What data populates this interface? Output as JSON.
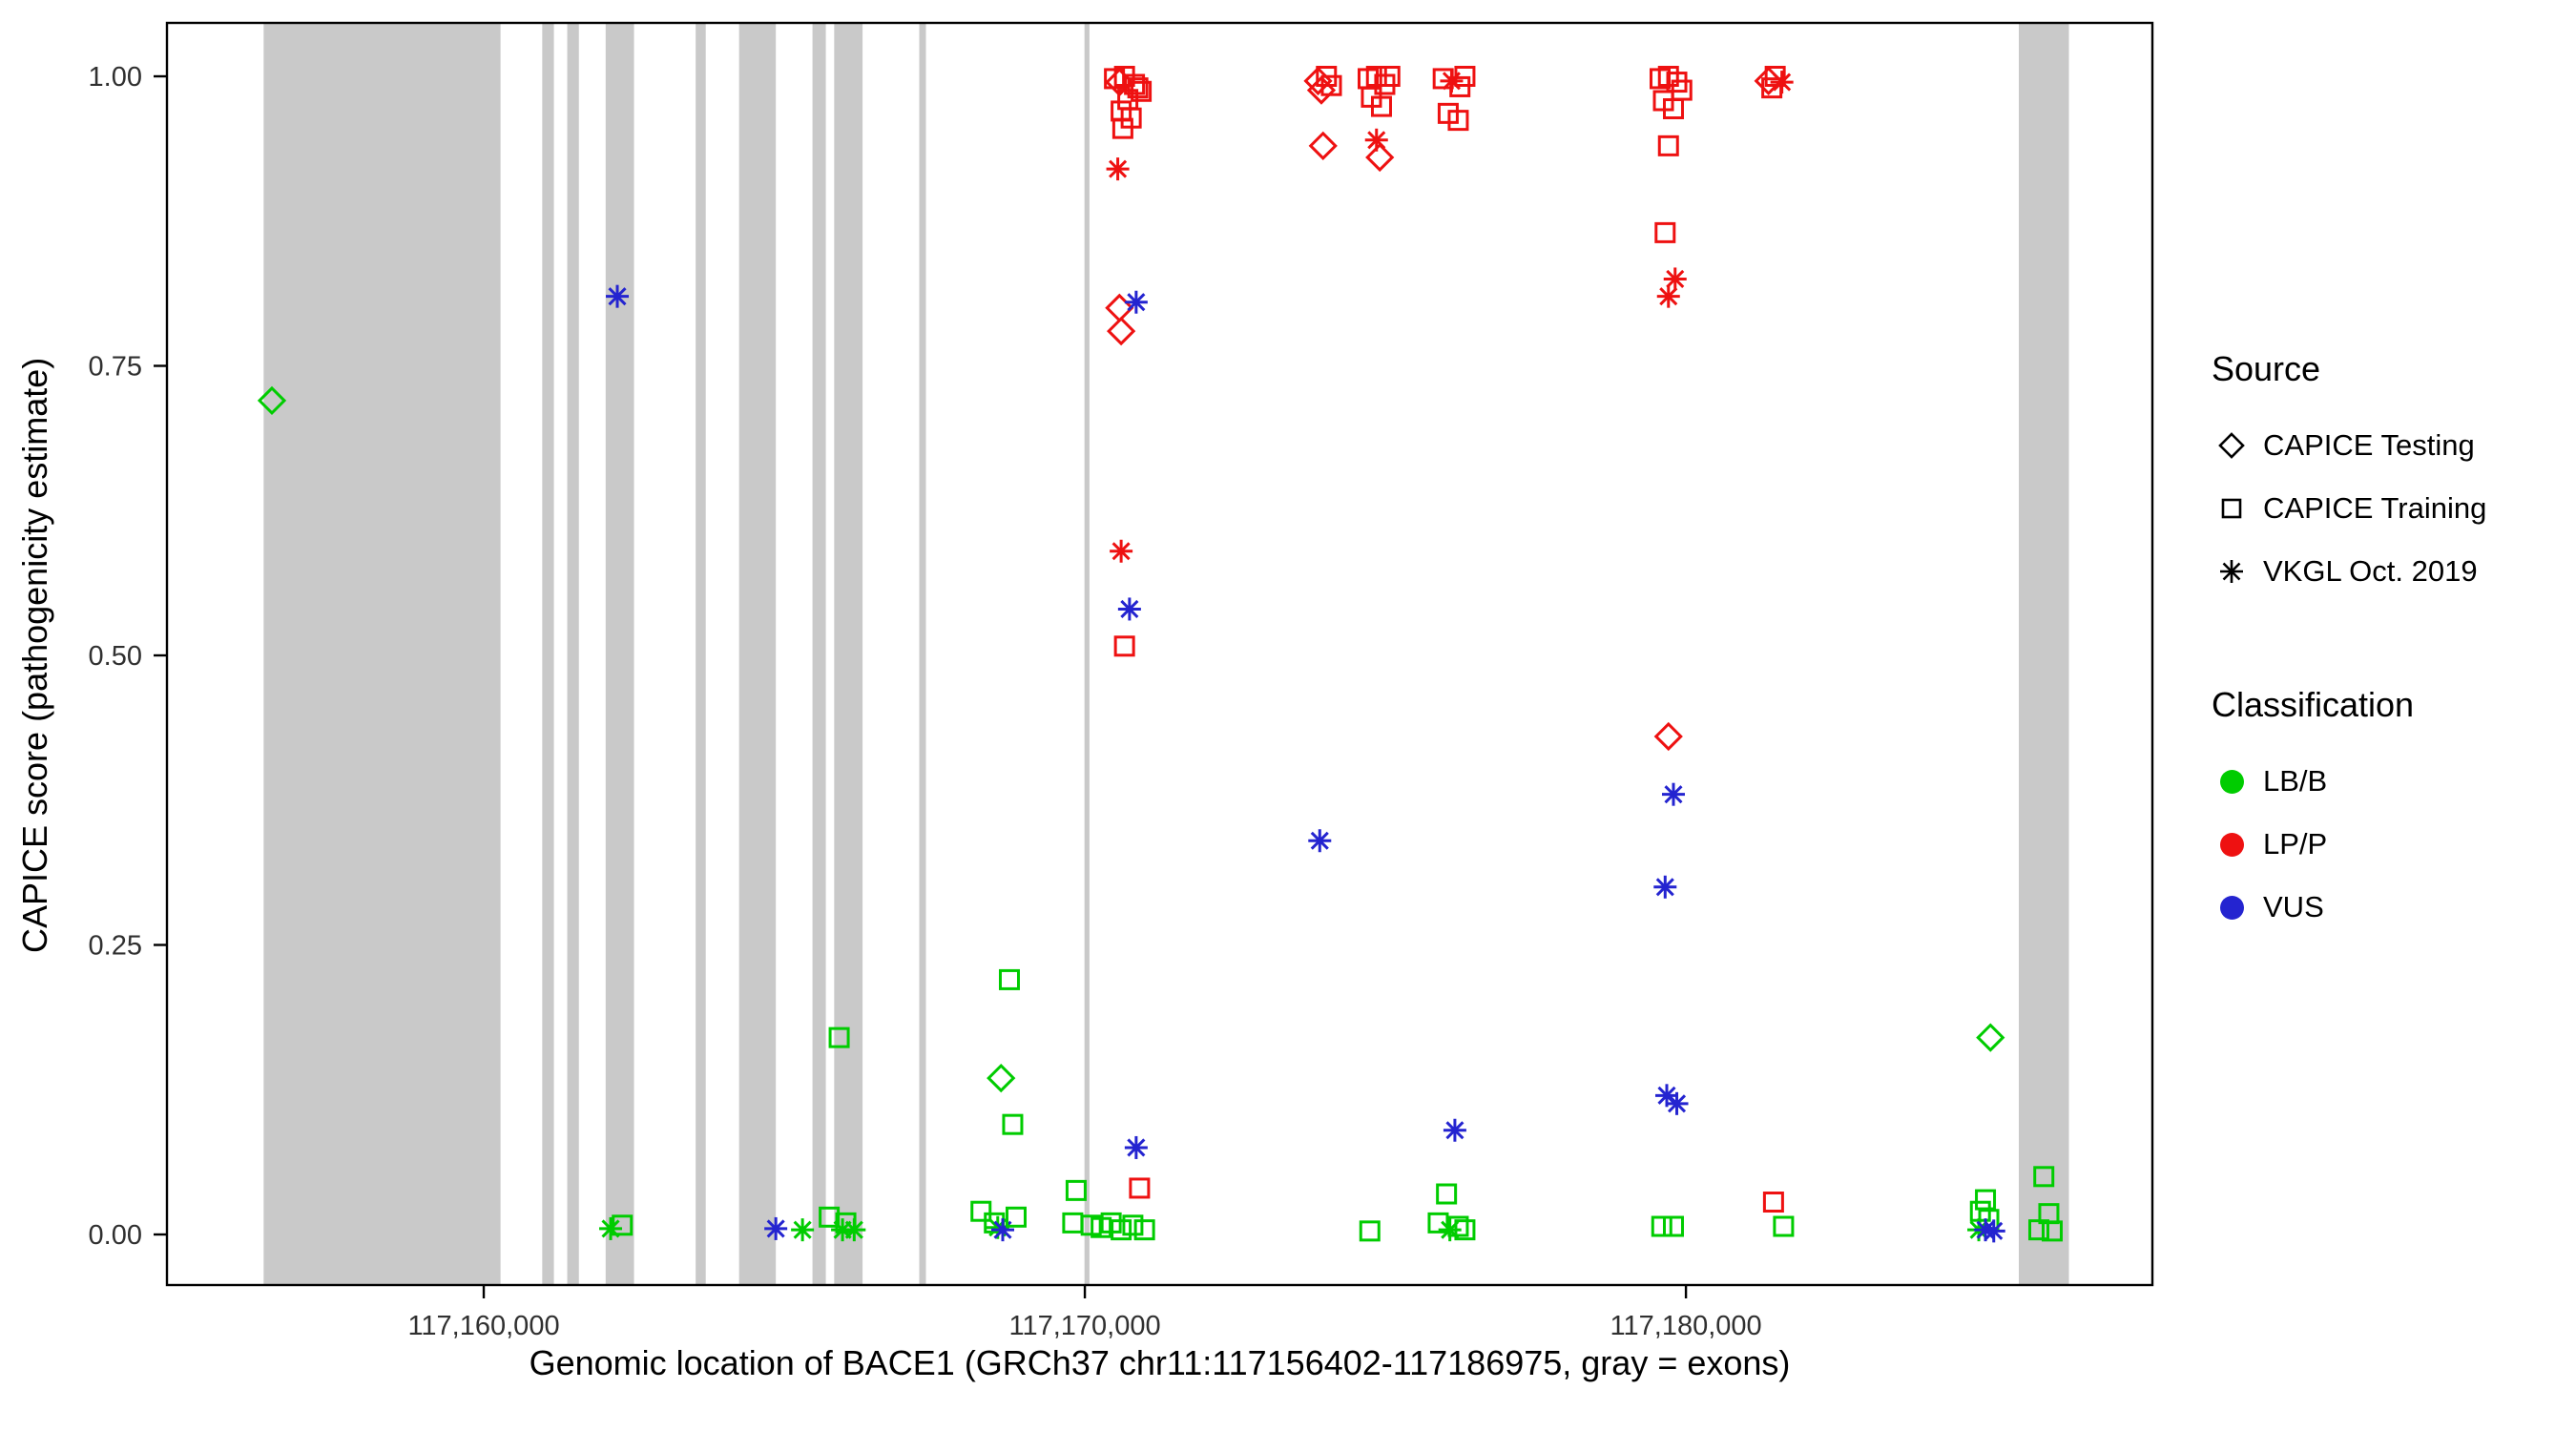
{
  "chart_data": {
    "type": "scatter",
    "title": "",
    "xlabel": "Genomic location of BACE1 (GRCh37 chr11:117156402-117186975, gray = exons)",
    "ylabel": "CAPICE score (pathogenicity estimate)",
    "x_domain": [
      117154730,
      117187760
    ],
    "y_domain": [
      0,
      1
    ],
    "x_ticks": [
      {
        "value": 117160000,
        "label": "117,160,000"
      },
      {
        "value": 117170000,
        "label": "117,170,000"
      },
      {
        "value": 117180000,
        "label": "117,180,000"
      }
    ],
    "y_ticks": [
      {
        "value": 0.0,
        "label": "0.00"
      },
      {
        "value": 0.25,
        "label": "0.25"
      },
      {
        "value": 0.5,
        "label": "0.50"
      },
      {
        "value": 0.75,
        "label": "0.75"
      },
      {
        "value": 1.0,
        "label": "1.00"
      }
    ],
    "grid": false,
    "legend_position": "right",
    "exon_color": "#c9c9c9",
    "classification_colors": {
      "LB/B": "#00cc00",
      "LP/P": "#ee1111",
      "VUS": "#2424d0"
    },
    "source_shapes": {
      "CAPICE Testing": "diamond",
      "CAPICE Training": "square",
      "VKGL Oct. 2019": "asterisk"
    },
    "exons": [
      [
        117156338,
        117160279
      ],
      [
        117160973,
        117161167
      ],
      [
        117161389,
        117161583
      ],
      [
        117162028,
        117162500
      ],
      [
        117163526,
        117163693
      ],
      [
        117164248,
        117164859
      ],
      [
        117165469,
        117165691
      ],
      [
        117165830,
        117166302
      ],
      [
        117167245,
        117167356
      ],
      [
        117169994,
        117170077
      ],
      [
        117185538,
        117186371
      ]
    ],
    "points": [
      {
        "x": 117156476,
        "y": 0.72,
        "s": "diamond",
        "c": "LB/B"
      },
      {
        "x": 117162111,
        "y": 0.005,
        "s": "asterisk",
        "c": "LB/B"
      },
      {
        "x": 117162305,
        "y": 0.008,
        "s": "square",
        "c": "LB/B"
      },
      {
        "x": 117162222,
        "y": 0.81,
        "s": "asterisk",
        "c": "VUS"
      },
      {
        "x": 117164859,
        "y": 0.005,
        "s": "asterisk",
        "c": "VUS"
      },
      {
        "x": 117165303,
        "y": 0.004,
        "s": "asterisk",
        "c": "LB/B"
      },
      {
        "x": 117165747,
        "y": 0.015,
        "s": "square",
        "c": "LB/B"
      },
      {
        "x": 117165913,
        "y": 0.17,
        "s": "square",
        "c": "LB/B"
      },
      {
        "x": 117165969,
        "y": 0.004,
        "s": "asterisk",
        "c": "LB/B"
      },
      {
        "x": 117166024,
        "y": 0.01,
        "s": "square",
        "c": "LB/B"
      },
      {
        "x": 117166163,
        "y": 0.004,
        "s": "asterisk",
        "c": "LB/B"
      },
      {
        "x": 117168273,
        "y": 0.02,
        "s": "square",
        "c": "LB/B"
      },
      {
        "x": 117168495,
        "y": 0.01,
        "s": "square",
        "c": "LB/B"
      },
      {
        "x": 117168551,
        "y": 0.006,
        "s": "asterisk",
        "c": "LB/B"
      },
      {
        "x": 117168606,
        "y": 0.135,
        "s": "diamond",
        "c": "LB/B"
      },
      {
        "x": 117168634,
        "y": 0.004,
        "s": "asterisk",
        "c": "VUS"
      },
      {
        "x": 117168745,
        "y": 0.22,
        "s": "square",
        "c": "LB/B"
      },
      {
        "x": 117168800,
        "y": 0.095,
        "s": "square",
        "c": "LB/B"
      },
      {
        "x": 117168856,
        "y": 0.015,
        "s": "square",
        "c": "LB/B"
      },
      {
        "x": 117169799,
        "y": 0.01,
        "s": "square",
        "c": "LB/B"
      },
      {
        "x": 117169855,
        "y": 0.038,
        "s": "square",
        "c": "LB/B"
      },
      {
        "x": 117170105,
        "y": 0.008,
        "s": "square",
        "c": "LB/B"
      },
      {
        "x": 117170271,
        "y": 0.006,
        "s": "square",
        "c": "LB/B"
      },
      {
        "x": 117170493,
        "y": 0.998,
        "s": "square",
        "c": "LP/P"
      },
      {
        "x": 117170660,
        "y": 1.0,
        "s": "square",
        "c": "LP/P"
      },
      {
        "x": 117170826,
        "y": 0.993,
        "s": "square",
        "c": "LP/P"
      },
      {
        "x": 117170937,
        "y": 0.987,
        "s": "square",
        "c": "LP/P"
      },
      {
        "x": 117170576,
        "y": 0.995,
        "s": "diamond",
        "c": "LP/P"
      },
      {
        "x": 117170715,
        "y": 0.98,
        "s": "square",
        "c": "LP/P"
      },
      {
        "x": 117170604,
        "y": 0.97,
        "s": "square",
        "c": "LP/P"
      },
      {
        "x": 117170771,
        "y": 0.964,
        "s": "square",
        "c": "LP/P"
      },
      {
        "x": 117170632,
        "y": 0.955,
        "s": "square",
        "c": "LP/P"
      },
      {
        "x": 117170882,
        "y": 0.99,
        "s": "square",
        "c": "LP/P"
      },
      {
        "x": 117170548,
        "y": 0.92,
        "s": "asterisk",
        "c": "LP/P"
      },
      {
        "x": 117170576,
        "y": 0.8,
        "s": "diamond",
        "c": "LP/P"
      },
      {
        "x": 117170854,
        "y": 0.805,
        "s": "asterisk",
        "c": "VUS"
      },
      {
        "x": 117170604,
        "y": 0.78,
        "s": "diamond",
        "c": "LP/P"
      },
      {
        "x": 117170604,
        "y": 0.59,
        "s": "asterisk",
        "c": "LP/P"
      },
      {
        "x": 117170743,
        "y": 0.54,
        "s": "asterisk",
        "c": "VUS"
      },
      {
        "x": 117170660,
        "y": 0.508,
        "s": "square",
        "c": "LP/P"
      },
      {
        "x": 117170854,
        "y": 0.075,
        "s": "asterisk",
        "c": "VUS"
      },
      {
        "x": 117170910,
        "y": 0.04,
        "s": "square",
        "c": "LP/P"
      },
      {
        "x": 117170438,
        "y": 0.01,
        "s": "square",
        "c": "LB/B"
      },
      {
        "x": 117170604,
        "y": 0.004,
        "s": "square",
        "c": "LB/B"
      },
      {
        "x": 117170799,
        "y": 0.008,
        "s": "square",
        "c": "LB/B"
      },
      {
        "x": 117170993,
        "y": 0.004,
        "s": "square",
        "c": "LB/B"
      },
      {
        "x": 117173880,
        "y": 0.996,
        "s": "diamond",
        "c": "LP/P"
      },
      {
        "x": 117174019,
        "y": 1.0,
        "s": "square",
        "c": "LP/P"
      },
      {
        "x": 117174102,
        "y": 0.992,
        "s": "square",
        "c": "LP/P"
      },
      {
        "x": 117173935,
        "y": 0.988,
        "s": "diamond",
        "c": "LP/P"
      },
      {
        "x": 117173963,
        "y": 0.94,
        "s": "diamond",
        "c": "LP/P"
      },
      {
        "x": 117173908,
        "y": 0.34,
        "s": "asterisk",
        "c": "VUS"
      },
      {
        "x": 117174713,
        "y": 0.998,
        "s": "square",
        "c": "LP/P"
      },
      {
        "x": 117174852,
        "y": 1.0,
        "s": "square",
        "c": "LP/P"
      },
      {
        "x": 117174990,
        "y": 0.993,
        "s": "square",
        "c": "LP/P"
      },
      {
        "x": 117175074,
        "y": 1.0,
        "s": "square",
        "c": "LP/P"
      },
      {
        "x": 117174768,
        "y": 0.982,
        "s": "square",
        "c": "LP/P"
      },
      {
        "x": 117174935,
        "y": 0.974,
        "s": "square",
        "c": "LP/P"
      },
      {
        "x": 117174852,
        "y": 0.945,
        "s": "asterisk",
        "c": "LP/P"
      },
      {
        "x": 117174907,
        "y": 0.93,
        "s": "diamond",
        "c": "LP/P"
      },
      {
        "x": 117174741,
        "y": 0.003,
        "s": "square",
        "c": "LB/B"
      },
      {
        "x": 117175962,
        "y": 0.998,
        "s": "square",
        "c": "LP/P"
      },
      {
        "x": 117176101,
        "y": 0.996,
        "s": "asterisk",
        "c": "LP/P"
      },
      {
        "x": 117176240,
        "y": 0.991,
        "s": "square",
        "c": "LP/P"
      },
      {
        "x": 117176323,
        "y": 1.0,
        "s": "square",
        "c": "LP/P"
      },
      {
        "x": 117176045,
        "y": 0.968,
        "s": "square",
        "c": "LP/P"
      },
      {
        "x": 117176212,
        "y": 0.962,
        "s": "square",
        "c": "LP/P"
      },
      {
        "x": 117176156,
        "y": 0.09,
        "s": "asterisk",
        "c": "VUS"
      },
      {
        "x": 117176017,
        "y": 0.035,
        "s": "square",
        "c": "LB/B"
      },
      {
        "x": 117175879,
        "y": 0.01,
        "s": "square",
        "c": "LB/B"
      },
      {
        "x": 117176073,
        "y": 0.004,
        "s": "asterisk",
        "c": "LB/B"
      },
      {
        "x": 117176212,
        "y": 0.007,
        "s": "square",
        "c": "LB/B"
      },
      {
        "x": 117176323,
        "y": 0.004,
        "s": "square",
        "c": "LB/B"
      },
      {
        "x": 117179570,
        "y": 0.998,
        "s": "square",
        "c": "LP/P"
      },
      {
        "x": 117179709,
        "y": 1.0,
        "s": "square",
        "c": "LP/P"
      },
      {
        "x": 117179848,
        "y": 0.995,
        "s": "square",
        "c": "LP/P"
      },
      {
        "x": 117179931,
        "y": 0.988,
        "s": "square",
        "c": "LP/P"
      },
      {
        "x": 117179626,
        "y": 0.979,
        "s": "square",
        "c": "LP/P"
      },
      {
        "x": 117179792,
        "y": 0.972,
        "s": "square",
        "c": "LP/P"
      },
      {
        "x": 117179709,
        "y": 0.94,
        "s": "square",
        "c": "LP/P"
      },
      {
        "x": 117179654,
        "y": 0.865,
        "s": "square",
        "c": "LP/P"
      },
      {
        "x": 117179820,
        "y": 0.825,
        "s": "asterisk",
        "c": "LP/P"
      },
      {
        "x": 117179709,
        "y": 0.81,
        "s": "asterisk",
        "c": "LP/P"
      },
      {
        "x": 117179709,
        "y": 0.43,
        "s": "diamond",
        "c": "LP/P"
      },
      {
        "x": 117179792,
        "y": 0.38,
        "s": "asterisk",
        "c": "VUS"
      },
      {
        "x": 117179654,
        "y": 0.3,
        "s": "asterisk",
        "c": "VUS"
      },
      {
        "x": 117179681,
        "y": 0.12,
        "s": "asterisk",
        "c": "VUS"
      },
      {
        "x": 117179848,
        "y": 0.113,
        "s": "asterisk",
        "c": "VUS"
      },
      {
        "x": 117179598,
        "y": 0.007,
        "s": "square",
        "c": "LB/B"
      },
      {
        "x": 117179792,
        "y": 0.007,
        "s": "square",
        "c": "LB/B"
      },
      {
        "x": 117181374,
        "y": 0.996,
        "s": "diamond",
        "c": "LP/P"
      },
      {
        "x": 117181485,
        "y": 1.0,
        "s": "square",
        "c": "LP/P"
      },
      {
        "x": 117181596,
        "y": 0.995,
        "s": "asterisk",
        "c": "LP/P"
      },
      {
        "x": 117181429,
        "y": 0.99,
        "s": "square",
        "c": "LP/P"
      },
      {
        "x": 117181457,
        "y": 0.028,
        "s": "square",
        "c": "LP/P"
      },
      {
        "x": 117181624,
        "y": 0.007,
        "s": "square",
        "c": "LB/B"
      },
      {
        "x": 117185066,
        "y": 0.17,
        "s": "diamond",
        "c": "LB/B"
      },
      {
        "x": 117184983,
        "y": 0.03,
        "s": "square",
        "c": "LB/B"
      },
      {
        "x": 117184899,
        "y": 0.02,
        "s": "square",
        "c": "LB/B"
      },
      {
        "x": 117185038,
        "y": 0.013,
        "s": "square",
        "c": "LB/B"
      },
      {
        "x": 117184872,
        "y": 0.004,
        "s": "asterisk",
        "c": "LB/B"
      },
      {
        "x": 117184983,
        "y": 0.004,
        "s": "asterisk",
        "c": "VUS"
      },
      {
        "x": 117185121,
        "y": 0.003,
        "s": "asterisk",
        "c": "VUS"
      },
      {
        "x": 117185954,
        "y": 0.05,
        "s": "square",
        "c": "LB/B"
      },
      {
        "x": 117186037,
        "y": 0.018,
        "s": "square",
        "c": "LB/B"
      },
      {
        "x": 117185871,
        "y": 0.004,
        "s": "square",
        "c": "LB/B"
      },
      {
        "x": 117186093,
        "y": 0.003,
        "s": "square",
        "c": "LB/B"
      }
    ]
  },
  "legend": {
    "source_title": "Source",
    "source_items": [
      {
        "label": "CAPICE Testing",
        "shape": "diamond"
      },
      {
        "label": "CAPICE Training",
        "shape": "square"
      },
      {
        "label": "VKGL Oct. 2019",
        "shape": "asterisk"
      }
    ],
    "classification_title": "Classification",
    "classification_items": [
      {
        "label": "LB/B",
        "color": "#00cc00"
      },
      {
        "label": "LP/P",
        "color": "#ee1111"
      },
      {
        "label": "VUS",
        "color": "#2424d0"
      }
    ]
  }
}
